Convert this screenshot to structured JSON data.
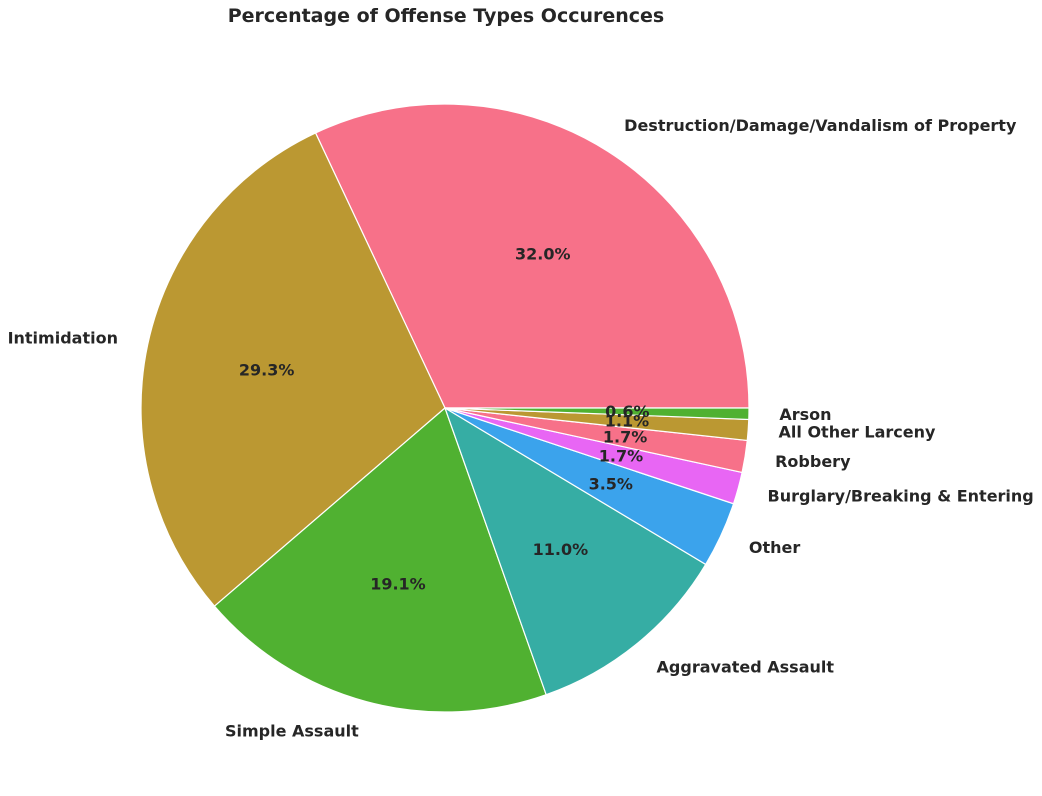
{
  "chart_data": {
    "type": "pie",
    "title": "Percentage of Offense Types Occurences",
    "categories": [
      "Destruction/Damage/Vandalism of Property",
      "Intimidation",
      "Simple Assault",
      "Aggravated Assault",
      "Other",
      "Burglary/Breaking & Entering",
      "Robbery",
      "All Other Larceny",
      "Arson"
    ],
    "values": [
      32.0,
      29.3,
      19.1,
      11.0,
      3.5,
      1.7,
      1.7,
      1.1,
      0.6
    ],
    "value_labels": [
      "32.0%",
      "29.3%",
      "19.1%",
      "11.0%",
      "3.5%",
      "1.7%",
      "1.7%",
      "1.1%",
      "0.6%"
    ],
    "colors": [
      "#f77189",
      "#bb9832",
      "#50b131",
      "#36ada4",
      "#3ba3ec",
      "#e866f4",
      "#f77189",
      "#bb9832",
      "#50b131"
    ],
    "start_angle_deg": 0,
    "direction": "counterclockwise"
  }
}
